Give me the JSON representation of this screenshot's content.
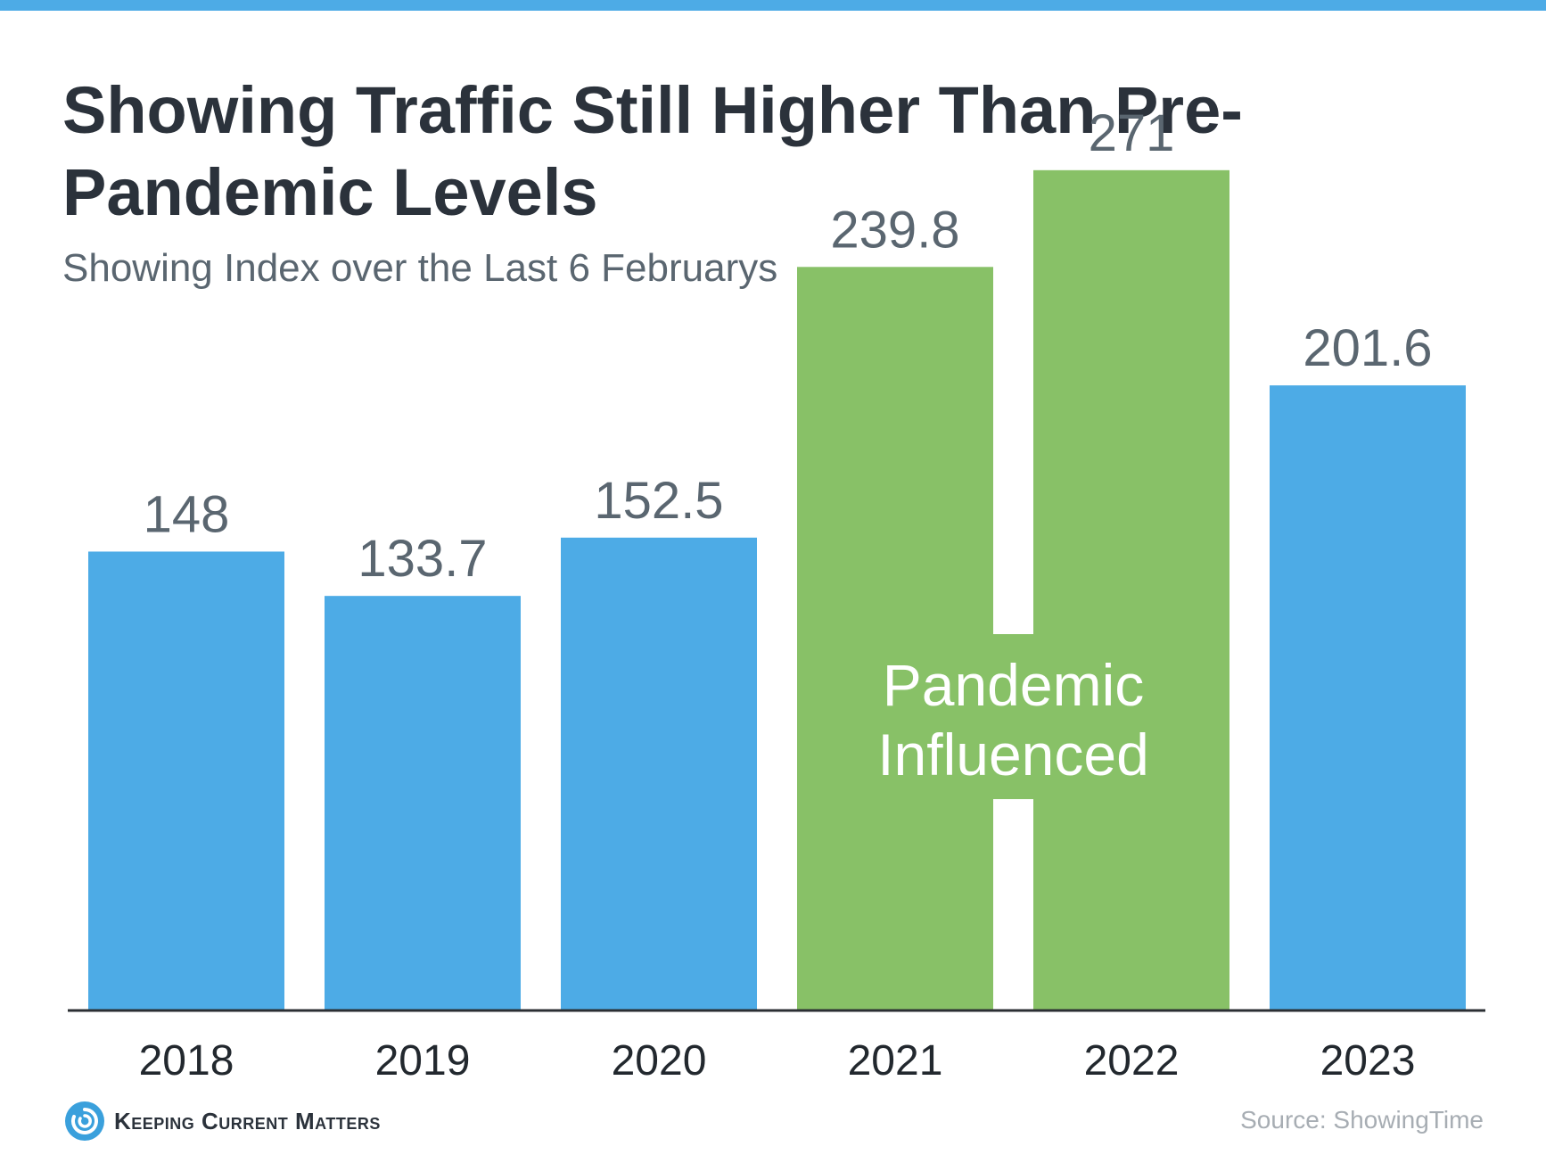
{
  "header": {
    "title": "Showing Traffic Still Higher Than Pre-Pandemic Levels",
    "subtitle": "Showing Index over the Last 6 Februarys"
  },
  "chart_data": {
    "type": "bar",
    "title": "Showing Traffic Still Higher Than Pre-Pandemic Levels",
    "subtitle": "Showing Index over the Last 6 Februarys",
    "categories": [
      "2018",
      "2019",
      "2020",
      "2021",
      "2022",
      "2023"
    ],
    "values": [
      148,
      133.7,
      152.5,
      239.8,
      271,
      201.6
    ],
    "value_labels": [
      "148",
      "133.7",
      "152.5",
      "239.8",
      "271",
      "201.6"
    ],
    "bar_colors": [
      "#4dabe6",
      "#4dabe6",
      "#4dabe6",
      "#88c167",
      "#88c167",
      "#4dabe6"
    ],
    "ylim": [
      0,
      300
    ],
    "grid": false,
    "annotation": {
      "text_lines": [
        "Pandemic",
        "Influenced"
      ],
      "spans": [
        "2021",
        "2022"
      ],
      "color": "#88c167"
    },
    "xlabel": "",
    "ylabel": ""
  },
  "footer": {
    "brand_name": "Keeping Current Matters",
    "brand_icon": "swirl-logo-icon",
    "source": "Source: ShowingTime"
  },
  "colors": {
    "accent": "#4dabe6",
    "pandemic": "#88c167",
    "title": "#2b323b",
    "label": "#5a6670"
  }
}
